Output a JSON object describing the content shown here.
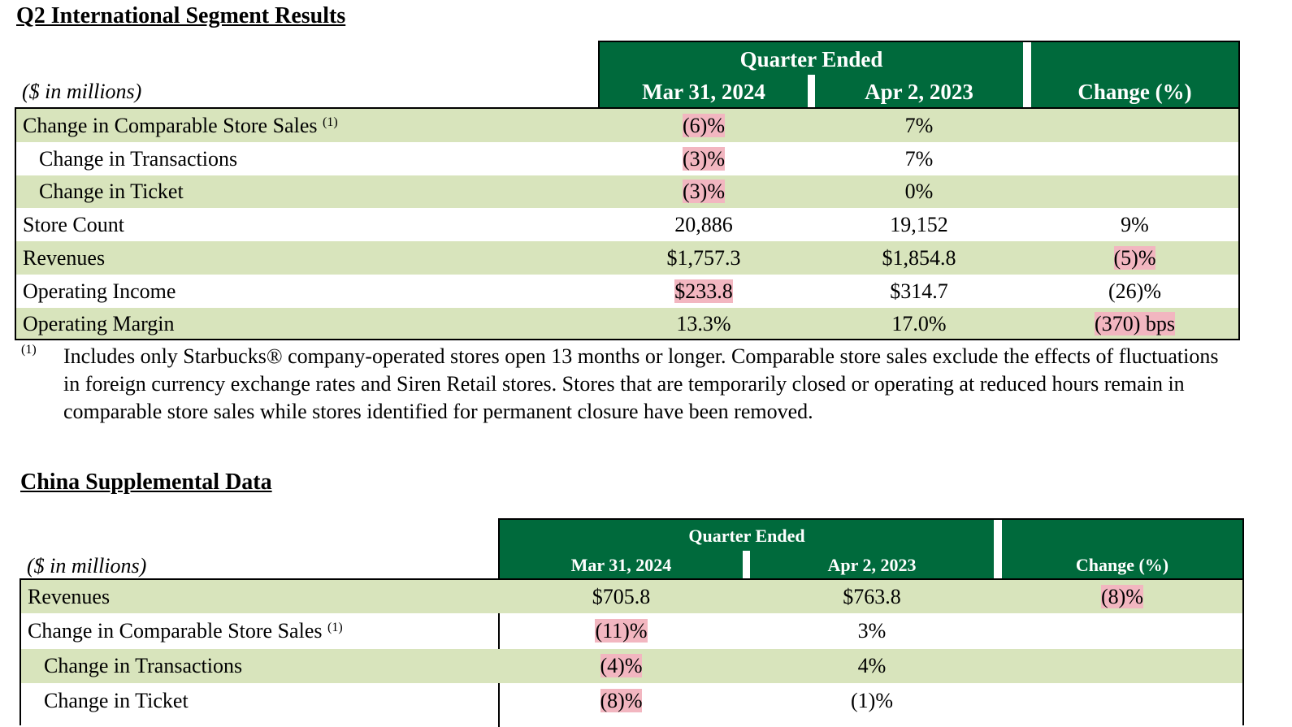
{
  "intl": {
    "title": "Q2 International Segment Results",
    "unit": "($ in millions)",
    "quarter_ended": "Quarter Ended",
    "col1": "Mar 31, 2024",
    "col2": "Apr 2, 2023",
    "col3": "Change (%)",
    "rows": [
      {
        "label": "Change in Comparable Store Sales",
        "sup": "(1)",
        "v1": "(6)%",
        "v2": "7%",
        "v3": ""
      },
      {
        "label": "Change in Transactions",
        "v1": "(3)%",
        "v2": "7%",
        "v3": ""
      },
      {
        "label": "Change in Ticket",
        "v1": "(3)%",
        "v2": "0%",
        "v3": ""
      },
      {
        "label": "Store Count",
        "v1": "20,886",
        "v2": "19,152",
        "v3": "9%"
      },
      {
        "label": "Revenues",
        "v1": "$1,757.3",
        "v2": "$1,854.8",
        "v3": "(5)%"
      },
      {
        "label": "Operating Income",
        "v1": "$233.8",
        "v2": "$314.7",
        "v3": "(26)%"
      },
      {
        "label": "Operating Margin",
        "v1": "13.3%",
        "v2": "17.0%",
        "v3": "(370) bps"
      }
    ],
    "footnote_mark": "(1)",
    "footnote": "Includes only Starbucks® company-operated stores open 13 months or longer. Comparable store sales exclude the effects of fluctuations in foreign currency exchange rates and Siren Retail stores. Stores that are temporarily closed or operating at reduced hours remain in comparable store sales while stores identified for permanent closure have been removed."
  },
  "china": {
    "title": "China Supplemental Data",
    "unit": "($ in millions)",
    "quarter_ended": "Quarter Ended",
    "col1": "Mar 31, 2024",
    "col2": "Apr 2, 2023",
    "col3": "Change (%)",
    "rows": [
      {
        "label": "Revenues",
        "v1": "$705.8",
        "v2": "$763.8",
        "v3": "(8)%"
      },
      {
        "label": "Change in Comparable Store Sales",
        "sup": "(1)",
        "v1": "(11)%",
        "v2": "3%",
        "v3": ""
      },
      {
        "label": "Change in Transactions",
        "v1": "(4)%",
        "v2": "4%",
        "v3": ""
      },
      {
        "label": "Change in Ticket",
        "v1": "(8)%",
        "v2": "(1)%",
        "v3": ""
      }
    ]
  },
  "colors": {
    "header_green": "#006a3c",
    "row_shade": "#d8e4bc",
    "highlight": "#f2b6c0"
  }
}
